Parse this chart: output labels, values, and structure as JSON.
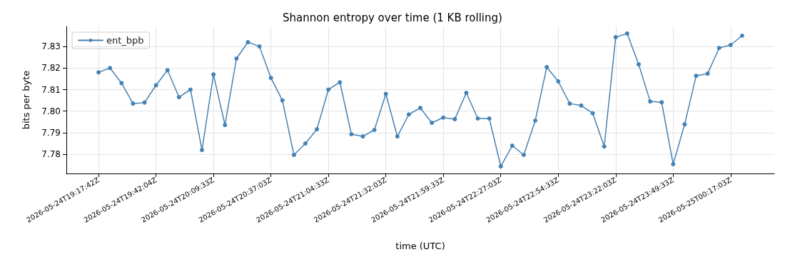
{
  "chart_data": {
    "type": "line",
    "title": "Shannon entropy over time (1 KB rolling)",
    "xlabel": "time (UTC)",
    "ylabel": "bits per byte",
    "categories": [
      "2026-05-24T19:17:42Z",
      null,
      null,
      null,
      null,
      "2026-05-24T19:42:04Z",
      null,
      null,
      null,
      null,
      "2026-05-24T20:09:33Z",
      null,
      null,
      null,
      null,
      "2026-05-24T20:37:03Z",
      null,
      null,
      null,
      null,
      "2026-05-24T21:04:33Z",
      null,
      null,
      null,
      null,
      "2026-05-24T21:32:03Z",
      null,
      null,
      null,
      null,
      "2026-05-24T21:59:33Z",
      null,
      null,
      null,
      null,
      "2026-05-24T22:27:03Z",
      null,
      null,
      null,
      null,
      "2026-05-24T22:54:33Z",
      null,
      null,
      null,
      null,
      "2026-05-24T23:22:03Z",
      null,
      null,
      null,
      null,
      "2026-05-24T23:49:33Z",
      null,
      null,
      null,
      null,
      "2026-05-25T00:17:03Z",
      null
    ],
    "series": [
      {
        "name": "ent_bpb",
        "color": "#4682b4",
        "values": [
          7.818,
          7.82,
          7.813,
          7.8035,
          7.804,
          7.812,
          7.819,
          7.8065,
          7.81,
          7.782,
          7.817,
          7.7936,
          7.8244,
          7.832,
          7.83,
          7.8154,
          7.805,
          7.7797,
          7.785,
          7.7916,
          7.81,
          7.8134,
          7.7893,
          7.7883,
          7.7913,
          7.808,
          7.7883,
          7.7985,
          7.8015,
          7.7946,
          7.797,
          7.7963,
          7.8085,
          7.7966,
          7.7966,
          7.7744,
          7.784,
          7.7797,
          7.7956,
          7.8204,
          7.8138,
          7.8035,
          7.8026,
          7.799,
          7.7836,
          7.8343,
          7.836,
          7.8217,
          7.8045,
          7.8041,
          7.7754,
          7.7939,
          7.8164,
          7.8174,
          7.8293,
          7.8307,
          7.835
        ]
      }
    ],
    "ylim": [
      7.7711,
      7.8393
    ],
    "yticks": [
      {
        "value": 7.78,
        "label": "7.78"
      },
      {
        "value": 7.79,
        "label": "7.79"
      },
      {
        "value": 7.8,
        "label": "7.80"
      },
      {
        "value": 7.81,
        "label": "7.81"
      },
      {
        "value": 7.82,
        "label": "7.82"
      },
      {
        "value": 7.83,
        "label": "7.83"
      }
    ],
    "grid": true,
    "legend": "top left",
    "marker": "circle",
    "line_style": "solid"
  }
}
